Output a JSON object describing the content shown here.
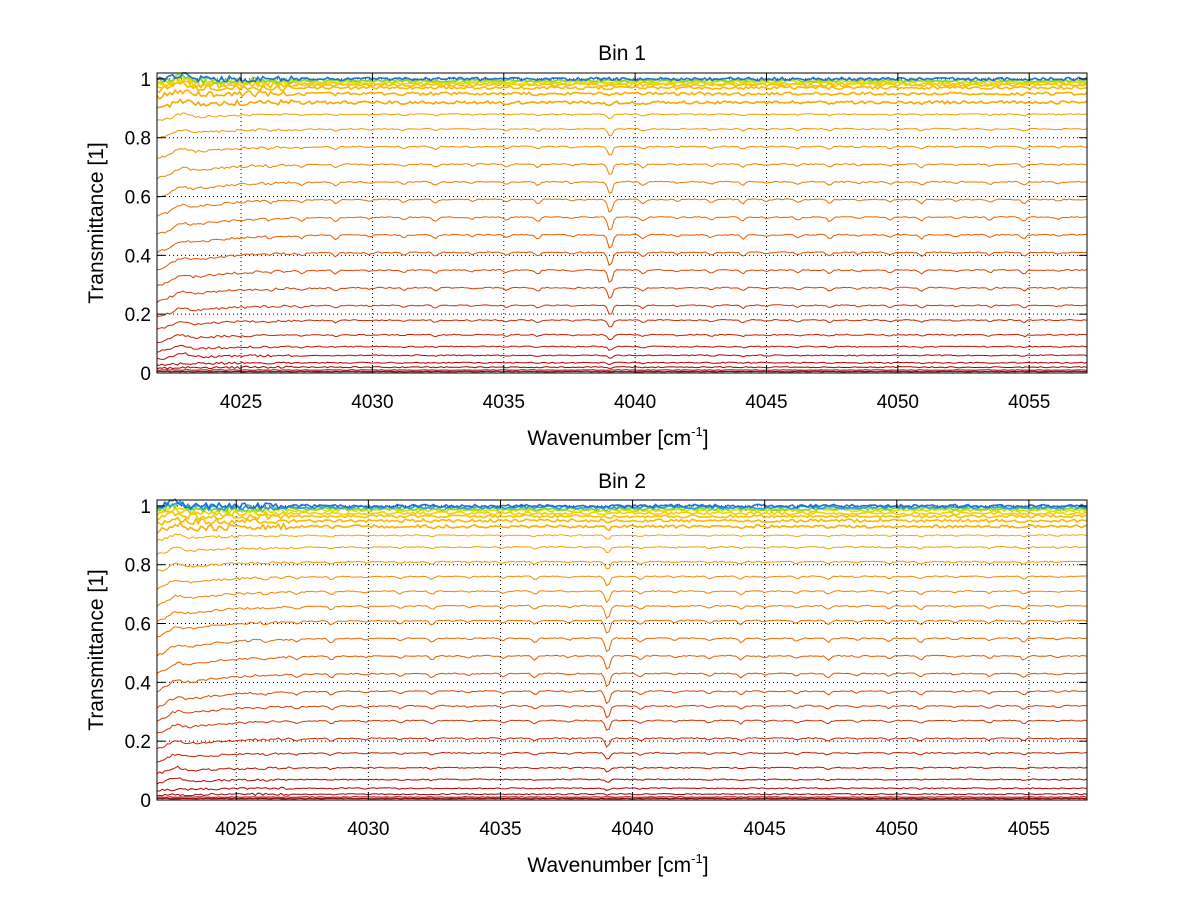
{
  "chart_data": [
    {
      "type": "line",
      "title": "Bin 1",
      "xlabel": "Wavenumber [cm",
      "xlabel_sup": "-1",
      "xlabel_end": "]",
      "ylabel": "Transmittance [1]",
      "xlim": [
        4021.8,
        4057.2
      ],
      "ylim": [
        0,
        1.02
      ],
      "xticks": [
        "4025",
        "4030",
        "4035",
        "4040",
        "4045",
        "4050",
        "4055"
      ],
      "yticks": [
        "0",
        "0.2",
        "0.4",
        "0.6",
        "0.8",
        "1"
      ],
      "grid": true,
      "legend": "none",
      "series_levels": [
        0.0,
        0.005,
        0.01,
        0.02,
        0.035,
        0.06,
        0.09,
        0.13,
        0.18,
        0.23,
        0.29,
        0.35,
        0.41,
        0.47,
        0.53,
        0.59,
        0.65,
        0.71,
        0.77,
        0.83,
        0.88,
        0.92,
        0.95,
        0.97,
        0.98,
        0.985,
        0.99,
        0.995,
        1.0
      ],
      "series_colors": [
        "#7f0000",
        "#8b0000",
        "#990000",
        "#a30000",
        "#b00000",
        "#b80600",
        "#bf1200",
        "#c61e00",
        "#cc2900",
        "#d13400",
        "#d63f00",
        "#da4800",
        "#de5200",
        "#e25c00",
        "#e66600",
        "#ea7000",
        "#ed7900",
        "#f08200",
        "#f28b00",
        "#f49400",
        "#f69d00",
        "#f8a600",
        "#f9af00",
        "#fab800",
        "#fbc100",
        "#f7ce00",
        "#d9e000",
        "#7fd44a",
        "#1f6fd6"
      ]
    },
    {
      "type": "line",
      "title": "Bin 2",
      "xlabel": "Wavenumber [cm",
      "xlabel_sup": "-1",
      "xlabel_end": "]",
      "ylabel": "Transmittance [1]",
      "xlim": [
        4022.0,
        4057.2
      ],
      "ylim": [
        0,
        1.02
      ],
      "xticks": [
        "4025",
        "4030",
        "4035",
        "4040",
        "4045",
        "4050",
        "4055"
      ],
      "yticks": [
        "0",
        "0.2",
        "0.4",
        "0.6",
        "0.8",
        "1"
      ],
      "grid": true,
      "legend": "none",
      "series_levels": [
        0.0,
        0.005,
        0.01,
        0.02,
        0.04,
        0.07,
        0.11,
        0.16,
        0.21,
        0.27,
        0.32,
        0.37,
        0.43,
        0.49,
        0.55,
        0.61,
        0.66,
        0.71,
        0.76,
        0.81,
        0.86,
        0.9,
        0.93,
        0.95,
        0.965,
        0.975,
        0.985,
        0.99,
        0.995,
        1.0
      ],
      "series_colors": [
        "#7f0000",
        "#8b0000",
        "#990000",
        "#a30000",
        "#b00000",
        "#b80600",
        "#bf1200",
        "#c61e00",
        "#cc2900",
        "#d13400",
        "#d63f00",
        "#da4800",
        "#de5200",
        "#e25c00",
        "#e66600",
        "#ea7000",
        "#ed7900",
        "#f08200",
        "#f28b00",
        "#f49400",
        "#f69d00",
        "#f8a600",
        "#f9af00",
        "#fab800",
        "#fbc100",
        "#f7ce00",
        "#d9e000",
        "#7fd44a",
        "#2aa0d0",
        "#1f6fd6"
      ]
    }
  ]
}
